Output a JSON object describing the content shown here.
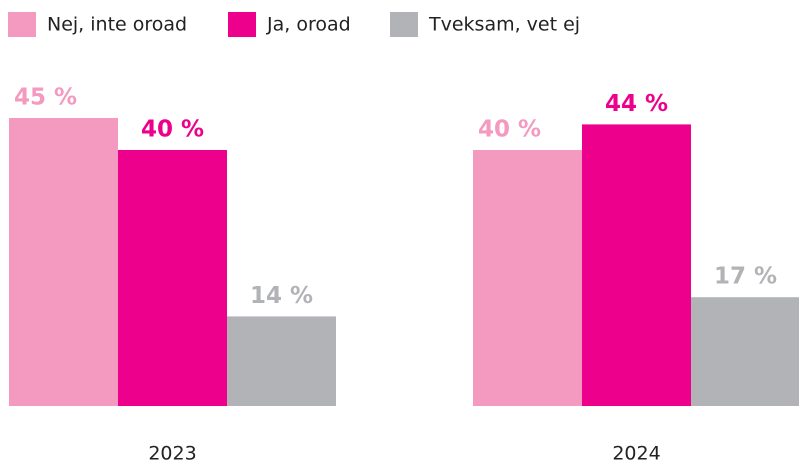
{
  "chart_data": {
    "type": "bar",
    "categories": [
      "2023",
      "2024"
    ],
    "series": [
      {
        "name": "Nej, inte oroad",
        "color": "#f49ac1",
        "values": [
          45,
          40
        ],
        "value_labels": [
          "45 %",
          "40 %"
        ]
      },
      {
        "name": "Ja, oroad",
        "color": "#ec008c",
        "values": [
          40,
          44
        ],
        "value_labels": [
          "40 %",
          "44 %"
        ]
      },
      {
        "name": "Tveksam, vet ej",
        "color": "#b1b3b6",
        "values": [
          14,
          17
        ],
        "value_labels": [
          "14 %",
          "17 %"
        ]
      }
    ],
    "ylim": [
      0,
      50
    ]
  }
}
